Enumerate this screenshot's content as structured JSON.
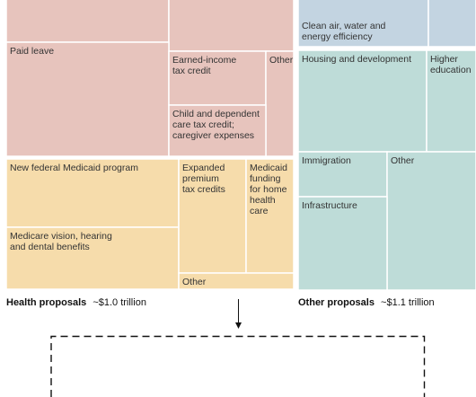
{
  "chart_data": {
    "type": "treemap",
    "colors": {
      "family": "#e7c4bd",
      "health": "#f6dcab",
      "other": "#bedcd8",
      "climate": "#c3d4e1",
      "background": "#ffffff",
      "line": "#111111"
    },
    "groups": [
      {
        "key": "family",
        "name": "",
        "total": "",
        "items": [
          {
            "label": ""
          },
          {
            "label": ""
          },
          {
            "label": "Paid leave"
          },
          {
            "label": "Earned-income\ntax credit"
          },
          {
            "label": "Other"
          },
          {
            "label": "Child and dependent\ncare tax credit;\ncaregiver expenses"
          }
        ]
      },
      {
        "key": "health",
        "name": "Health proposals",
        "total": "~$1.0 trillion",
        "items": [
          {
            "label": "New federal Medicaid program"
          },
          {
            "label": "Medicare vision, hearing\nand dental benefits"
          },
          {
            "label": "Expanded\npremium\ntax credits"
          },
          {
            "label": "Medicaid\nfunding\nfor home\nhealth\ncare"
          },
          {
            "label": "Other"
          }
        ]
      },
      {
        "key": "climate",
        "name": "",
        "total": "",
        "items": [
          {
            "label": "Clean air, water and\nenergy efficiency"
          },
          {
            "label": ""
          }
        ]
      },
      {
        "key": "other",
        "name": "Other proposals",
        "total": "~$1.1 trillion",
        "items": [
          {
            "label": "Housing and development"
          },
          {
            "label": "Higher\neducation"
          },
          {
            "label": "Immigration"
          },
          {
            "label": "Other"
          },
          {
            "label": "Infrastructure"
          }
        ]
      }
    ]
  }
}
